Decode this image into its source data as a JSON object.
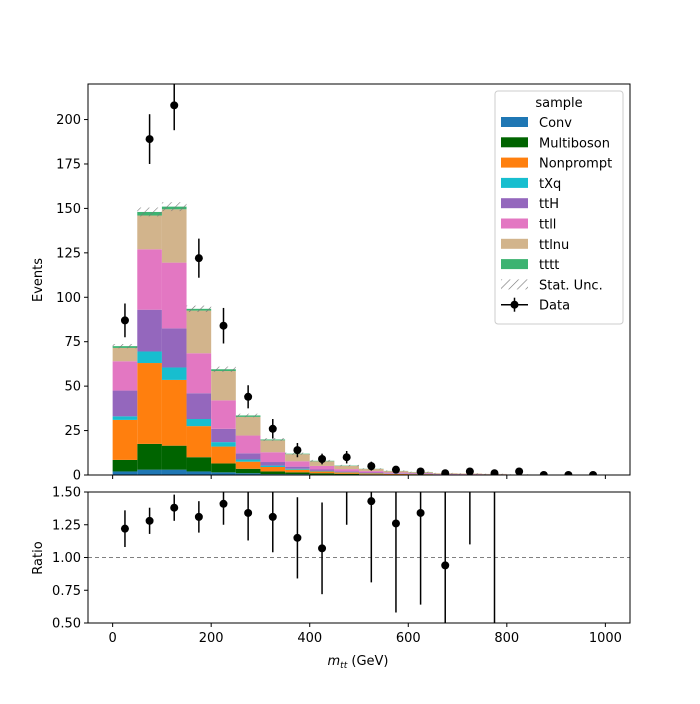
{
  "chart_data": {
    "type": "bar",
    "subtype": "stacked-histogram-with-ratio",
    "bin_edges": [
      0,
      50,
      100,
      150,
      200,
      250,
      300,
      350,
      400,
      450,
      500,
      550,
      600,
      650,
      700,
      750,
      800,
      850,
      900,
      950,
      1000
    ],
    "xlim": [
      -50,
      1050
    ],
    "xticks": [
      "0",
      "200",
      "400",
      "600",
      "800",
      "1000"
    ],
    "xtick_values": [
      0,
      200,
      400,
      600,
      800,
      1000
    ],
    "xlabel": "m_tt (GeV)",
    "top": {
      "ylabel": "Events",
      "ylim": [
        0,
        220
      ],
      "yticks": [
        "0",
        "25",
        "50",
        "75",
        "100",
        "125",
        "150",
        "175",
        "200"
      ],
      "ytick_values": [
        0,
        25,
        50,
        75,
        100,
        125,
        150,
        175,
        200
      ],
      "legend_title": "sample",
      "legend_placement": "top-right",
      "series": [
        {
          "name": "Conv",
          "color": "#1f77b4",
          "values": [
            2,
            3,
            3,
            2,
            1.5,
            1,
            0.5,
            0.5,
            0.3,
            0.2,
            0.1,
            0.1,
            0.1,
            0,
            0,
            0,
            0,
            0,
            0,
            0
          ]
        },
        {
          "name": "Multiboson",
          "color": "#006400",
          "values": [
            6.5,
            14.5,
            13.5,
            8,
            5,
            2.5,
            1.5,
            1,
            0.7,
            0.5,
            0.3,
            0.2,
            0.2,
            0.1,
            0.1,
            0.1,
            0,
            0,
            0,
            0
          ]
        },
        {
          "name": "Nonprompt",
          "color": "#ff7f0e",
          "values": [
            22.5,
            45.5,
            37,
            17.5,
            9.5,
            4,
            2.5,
            1.5,
            1,
            0.7,
            0.5,
            0.3,
            0.2,
            0.1,
            0.1,
            0.1,
            0,
            0,
            0,
            0
          ]
        },
        {
          "name": "tXq",
          "color": "#17becf",
          "values": [
            2,
            6.5,
            7,
            4,
            2.5,
            1.2,
            0.8,
            0.5,
            0.3,
            0.2,
            0.2,
            0.1,
            0.1,
            0.1,
            0,
            0,
            0,
            0,
            0,
            0
          ]
        },
        {
          "name": "ttH",
          "color": "#9467bd",
          "values": [
            14.5,
            23.5,
            22,
            14.5,
            7.5,
            3.5,
            2,
            1.2,
            0.8,
            0.5,
            0.3,
            0.2,
            0.2,
            0.1,
            0.1,
            0.1,
            0,
            0,
            0,
            0
          ]
        },
        {
          "name": "ttll",
          "color": "#e377c2",
          "values": [
            16.5,
            34,
            37,
            22.5,
            16,
            10,
            5.5,
            3,
            2,
            1.2,
            0.8,
            0.5,
            0.3,
            0.2,
            0.2,
            0.1,
            0.1,
            0,
            0,
            0
          ]
        },
        {
          "name": "ttlnu",
          "color": "#d2b48c",
          "values": [
            7.5,
            19,
            30,
            24,
            16.5,
            10.5,
            6.7,
            4,
            2.6,
            1.8,
            1.2,
            0.8,
            0.5,
            0.4,
            0.3,
            0.2,
            0.2,
            0.1,
            0.1,
            0.1
          ]
        },
        {
          "name": "tttt",
          "color": "#3cb371",
          "values": [
            1,
            2,
            1.5,
            1,
            1,
            0.8,
            0.5,
            0.3,
            0.3,
            0.2,
            0.1,
            0.1,
            0.1,
            0,
            0,
            0,
            0,
            0,
            0,
            0
          ]
        }
      ],
      "stat_unc": {
        "name": "Stat. Unc.",
        "color": "#777777",
        "half_width": [
          1.2,
          2.5,
          2.5,
          1.8,
          1.5,
          1,
          0.8,
          0.6,
          0.5,
          0.4,
          0.3,
          0.3,
          0.2,
          0.2,
          0.2,
          0.1,
          0.1,
          0.1,
          0.1,
          0.1
        ]
      },
      "data": {
        "name": "Data",
        "color": "#000000",
        "values": [
          87,
          189,
          208,
          122,
          84,
          44,
          26,
          14,
          9,
          10,
          5,
          3,
          2,
          1,
          2,
          1,
          2,
          0,
          0,
          0
        ],
        "errors": [
          9.5,
          14,
          14,
          11,
          10,
          6.5,
          5.5,
          4,
          3,
          3.5,
          2.5,
          2,
          1.5,
          1,
          1.5,
          1,
          1.5,
          0,
          0,
          0
        ]
      }
    },
    "bottom": {
      "ylabel": "Ratio",
      "ylim": [
        0.5,
        1.5
      ],
      "yticks": [
        "0.50",
        "0.75",
        "1.00",
        "1.25",
        "1.50"
      ],
      "ytick_values": [
        0.5,
        0.75,
        1.0,
        1.25,
        1.5
      ],
      "reference_line": 1.0,
      "ratio": [
        1.22,
        1.28,
        1.38,
        1.31,
        1.41,
        1.34,
        1.31,
        1.15,
        1.07,
        1.85,
        1.43,
        1.26,
        1.34,
        0.94,
        2.6,
        1.9,
        null,
        null,
        null,
        null
      ],
      "ratio_errors": [
        0.14,
        0.1,
        0.1,
        0.12,
        0.16,
        0.21,
        0.27,
        0.31,
        0.35,
        0.6,
        0.62,
        0.68,
        0.7,
        0.9,
        1.5,
        1.9,
        null,
        null,
        null,
        null
      ]
    }
  }
}
